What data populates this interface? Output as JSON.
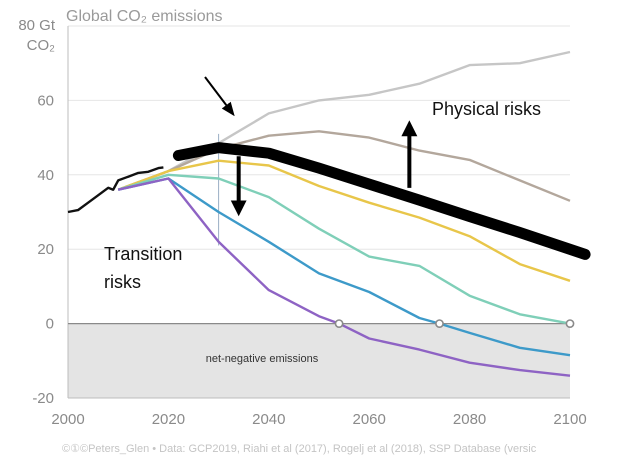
{
  "chart_data": {
    "type": "line",
    "title": "Global CO₂ emissions",
    "ylabel_line1": "80 Gt",
    "ylabel_line2": "CO₂",
    "xlim": [
      2000,
      2100
    ],
    "ylim": [
      -20,
      80
    ],
    "xticks": [
      "2000",
      "2020",
      "2040",
      "2060",
      "2080",
      "2100"
    ],
    "yticks": [
      "-20",
      "0",
      "20",
      "40",
      "60"
    ],
    "ytick_values": [
      -20,
      0,
      20,
      40,
      60
    ],
    "xtick_values": [
      2000,
      2020,
      2040,
      2060,
      2080,
      2100
    ],
    "grid": "horizontal",
    "negative_region_label": "net-negative emissions",
    "annotations": {
      "physical": "Physical risks",
      "transition_line1": "Transition",
      "transition_line2": "risks"
    },
    "credit": "©①©Peters_Glen • Data: GCP2019, Riahi et al (2017), Rogelj et al (2018), SSP Database (versic",
    "historical": {
      "color": "#111111",
      "x": [
        2000,
        2002,
        2004,
        2006,
        2008,
        2009,
        2010,
        2012,
        2014,
        2016,
        2018,
        2019
      ],
      "y": [
        30,
        30.5,
        32.5,
        34.5,
        36.5,
        36,
        38.5,
        39.5,
        40.5,
        40.8,
        41.8,
        42
      ]
    },
    "series": [
      {
        "color": "#c6c6c6",
        "x": [
          2010,
          2020,
          2030,
          2040,
          2050,
          2060,
          2070,
          2080,
          2090,
          2100
        ],
        "y": [
          36,
          41,
          48.5,
          56.5,
          60,
          61.5,
          64.5,
          69.5,
          70,
          73
        ]
      },
      {
        "color": "#b3a79c",
        "x": [
          2010,
          2020,
          2030,
          2040,
          2050,
          2060,
          2070,
          2080,
          2090,
          2100
        ],
        "y": [
          36,
          41,
          47,
          50.5,
          51.7,
          50,
          46.5,
          44,
          38.5,
          33
        ]
      },
      {
        "color": "#e8c64a",
        "x": [
          2010,
          2020,
          2030,
          2040,
          2050,
          2060,
          2070,
          2080,
          2090,
          2100
        ],
        "y": [
          36,
          41,
          43.8,
          42.5,
          37,
          32.5,
          28.5,
          23.5,
          16,
          11.5
        ]
      },
      {
        "color": "#7fcfb8",
        "x": [
          2010,
          2020,
          2030,
          2040,
          2050,
          2060,
          2070,
          2080,
          2090,
          2100
        ],
        "y": [
          36,
          40,
          39,
          34,
          25.5,
          18,
          15.5,
          7.5,
          2.5,
          0
        ]
      },
      {
        "color": "#3d9ac9",
        "x": [
          2010,
          2020,
          2030,
          2040,
          2050,
          2060,
          2070,
          2074,
          2080,
          2090,
          2100
        ],
        "y": [
          36,
          39,
          30,
          22,
          13.5,
          8.5,
          1.5,
          0,
          -2.5,
          -6.5,
          -8.5
        ]
      },
      {
        "color": "#8e63c4",
        "x": [
          2010,
          2020,
          2030,
          2040,
          2050,
          2054,
          2060,
          2070,
          2080,
          2090,
          2100
        ],
        "y": [
          36,
          39,
          22,
          9,
          2,
          0,
          -4,
          -7,
          -10.5,
          -12.5,
          -14
        ]
      }
    ],
    "zero_crossings": [
      2054,
      2074,
      2100
    ],
    "thick_line": {
      "color": "#000000",
      "x": [
        2022,
        2030,
        2040,
        2050,
        2060,
        2070,
        2080,
        2090,
        2103
      ],
      "y": [
        45.2,
        47.3,
        45.8,
        41.8,
        37.5,
        33.2,
        28.8,
        24.5,
        18.6
      ]
    },
    "marker_year": 2030,
    "arrows": {
      "physical": {
        "x": 2068,
        "y_from": 36.5,
        "y_to": 52.5
      },
      "transition": {
        "x": 2034,
        "y_from": 45,
        "y_to": 31
      }
    }
  }
}
